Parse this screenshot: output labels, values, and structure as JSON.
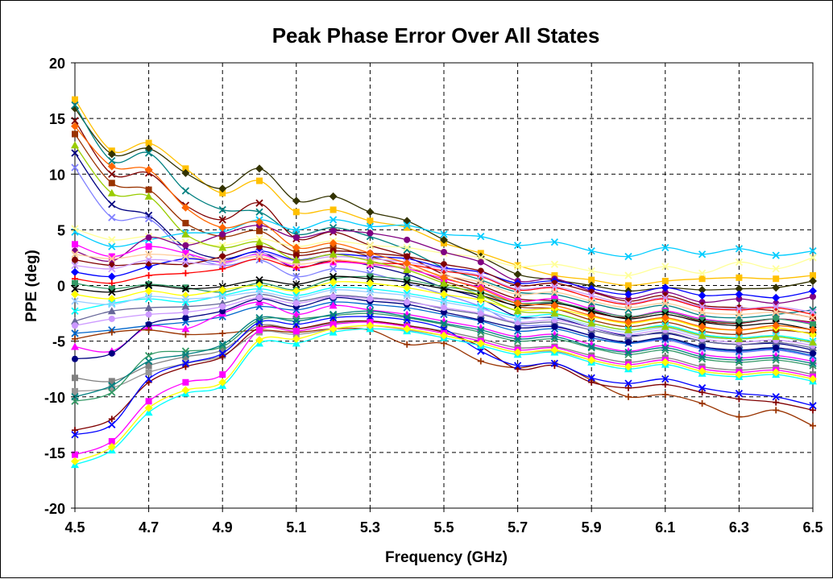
{
  "chart_data": {
    "type": "line",
    "title": "Peak Phase Error Over All States",
    "xlabel": "Frequency (GHz)",
    "ylabel": "PPE (deg)",
    "xlim": [
      4.5,
      6.5
    ],
    "ylim": [
      -20,
      20
    ],
    "x_ticks": [
      "4.5",
      "4.7",
      "4.9",
      "5.1",
      "5.3",
      "5.5",
      "5.7",
      "5.9",
      "6.1",
      "6.3",
      "6.5"
    ],
    "y_ticks": [
      "20",
      "15",
      "10",
      "5",
      "0",
      "-5",
      "-10",
      "-15",
      "-20"
    ],
    "grid": true,
    "legend": "none",
    "x": [
      4.5,
      4.6,
      4.7,
      4.8,
      4.9,
      5.0,
      5.1,
      5.2,
      5.3,
      5.4,
      5.5,
      5.6,
      5.7,
      5.8,
      5.9,
      6.0,
      6.1,
      6.2,
      6.3,
      6.4,
      6.5
    ],
    "series": [
      {
        "color": "#FFC000",
        "marker": "square",
        "values": [
          16.7,
          12.1,
          12.8,
          10.5,
          8.3,
          9.4,
          6.6,
          6.8,
          5.8,
          5.2,
          3.8,
          2.9,
          1.8,
          0.9,
          0.5,
          0.0,
          0.4,
          0.6,
          0.7,
          0.6,
          0.9
        ]
      },
      {
        "color": "#333300",
        "marker": "diamond",
        "values": [
          15.9,
          11.8,
          12.3,
          10.1,
          8.7,
          10.5,
          7.6,
          8.0,
          6.6,
          5.8,
          4.1,
          2.6,
          1.0,
          0.5,
          0.0,
          -0.5,
          -0.2,
          -0.4,
          -0.3,
          -0.2,
          0.4
        ]
      },
      {
        "color": "#008080",
        "marker": "x",
        "values": [
          16.2,
          11.2,
          11.9,
          8.5,
          6.8,
          6.6,
          4.6,
          5.2,
          4.4,
          3.2,
          1.6,
          0.5,
          -0.6,
          -0.8,
          -1.6,
          -2.2,
          -1.8,
          -2.7,
          -2.9,
          -2.6,
          -2.2
        ]
      },
      {
        "color": "#800000",
        "marker": "x",
        "values": [
          14.8,
          10.0,
          10.1,
          7.2,
          5.9,
          7.4,
          4.2,
          4.8,
          3.6,
          2.6,
          1.0,
          0.0,
          -1.2,
          -1.4,
          -2.4,
          -2.9,
          -2.4,
          -3.2,
          -3.4,
          -3.0,
          -3.3
        ]
      },
      {
        "color": "#993300",
        "marker": "square",
        "values": [
          13.6,
          9.2,
          8.6,
          5.6,
          4.4,
          4.9,
          3.0,
          3.4,
          2.6,
          1.7,
          0.4,
          -0.6,
          -1.9,
          -2.1,
          -3.1,
          -3.7,
          -3.3,
          -4.1,
          -4.4,
          -4.0,
          -4.3
        ]
      },
      {
        "color": "#000080",
        "marker": "x",
        "values": [
          11.9,
          7.3,
          6.3,
          3.4,
          2.4,
          3.0,
          1.6,
          2.3,
          1.8,
          1.0,
          -0.2,
          -1.2,
          -2.8,
          -2.9,
          -3.8,
          -4.5,
          -4.3,
          -5.0,
          -5.3,
          -5.2,
          -5.8
        ]
      },
      {
        "color": "#7F7FFF",
        "marker": "x",
        "values": [
          10.6,
          6.1,
          6.0,
          3.0,
          1.8,
          2.3,
          0.8,
          1.5,
          1.1,
          0.2,
          -0.8,
          -1.9,
          -3.5,
          -3.6,
          -4.5,
          -5.2,
          -4.9,
          -5.7,
          -6.0,
          -5.8,
          -6.4
        ]
      },
      {
        "color": "#00CCFF",
        "marker": "x",
        "values": [
          4.8,
          3.5,
          4.1,
          4.7,
          4.8,
          5.9,
          5.0,
          5.9,
          5.3,
          5.4,
          4.6,
          4.4,
          3.6,
          3.9,
          3.1,
          2.6,
          3.4,
          2.8,
          3.3,
          2.7,
          3.1
        ]
      },
      {
        "color": "#FFFF99",
        "marker": "x",
        "values": [
          5.1,
          4.1,
          4.4,
          3.9,
          3.6,
          4.2,
          3.5,
          4.0,
          3.6,
          3.4,
          2.9,
          2.5,
          1.7,
          1.9,
          1.3,
          0.9,
          1.7,
          1.1,
          2.1,
          1.5,
          2.5
        ]
      },
      {
        "color": "#800080",
        "marker": "circle",
        "values": [
          3.1,
          2.2,
          4.3,
          3.6,
          4.6,
          5.4,
          4.3,
          4.9,
          4.7,
          4.1,
          3.0,
          2.1,
          0.4,
          0.6,
          -0.5,
          -1.2,
          -0.6,
          -1.5,
          -1.2,
          -1.6,
          -1.0
        ]
      },
      {
        "color": "#FF00FF",
        "marker": "square",
        "values": [
          3.7,
          2.6,
          3.5,
          2.9,
          2.1,
          2.8,
          1.7,
          2.1,
          1.9,
          1.5,
          0.6,
          -0.2,
          -1.4,
          -1.2,
          -2.1,
          -2.8,
          -2.3,
          -3.0,
          -3.3,
          -3.0,
          -3.4
        ]
      },
      {
        "color": "#0000FF",
        "marker": "diamond",
        "values": [
          1.2,
          0.8,
          1.7,
          2.4,
          2.2,
          3.1,
          2.3,
          2.8,
          2.6,
          2.4,
          1.6,
          1.2,
          0.2,
          0.4,
          -0.3,
          -0.8,
          -0.2,
          -0.9,
          -0.8,
          -1.1,
          -0.5
        ]
      },
      {
        "color": "#800000",
        "marker": "circle",
        "values": [
          2.3,
          1.8,
          2.0,
          1.9,
          2.6,
          3.5,
          2.7,
          3.1,
          2.9,
          2.6,
          1.9,
          1.3,
          0.0,
          0.2,
          -0.6,
          -1.4,
          -0.9,
          -1.8,
          -2.0,
          -2.3,
          -2.9
        ]
      },
      {
        "color": "#FF0000",
        "marker": "plus",
        "values": [
          0.6,
          0.2,
          0.9,
          1.1,
          1.5,
          2.4,
          1.6,
          2.2,
          2.0,
          1.9,
          1.3,
          0.8,
          -0.4,
          -0.2,
          -1.1,
          -1.7,
          -1.2,
          -2.0,
          -2.2,
          -2.0,
          -2.6
        ]
      },
      {
        "color": "#CC99FF",
        "marker": "x",
        "values": [
          1.8,
          1.5,
          2.3,
          2.1,
          1.9,
          2.9,
          2.2,
          2.6,
          2.4,
          2.1,
          1.5,
          0.9,
          -0.3,
          -0.1,
          -0.9,
          -1.6,
          -1.1,
          -1.9,
          -2.1,
          -1.9,
          -2.4
        ]
      },
      {
        "color": "#339966",
        "marker": "square",
        "values": [
          0.2,
          -0.3,
          0.1,
          -0.2,
          -0.6,
          0.2,
          -0.4,
          0.6,
          0.8,
          0.5,
          -0.1,
          -0.6,
          -1.6,
          -1.5,
          -2.2,
          -2.8,
          -2.4,
          -3.1,
          -3.3,
          -3.0,
          -3.5
        ]
      },
      {
        "color": "#000000",
        "marker": "x",
        "values": [
          -0.3,
          -0.6,
          0.0,
          -0.3,
          -0.1,
          0.5,
          0.1,
          0.8,
          0.6,
          0.3,
          -0.3,
          -0.9,
          -1.8,
          -1.6,
          -2.3,
          -3.0,
          -2.6,
          -3.3,
          -3.6,
          -3.4,
          -4.0
        ]
      },
      {
        "color": "#FFFF00",
        "marker": "diamond",
        "values": [
          -0.8,
          -1.2,
          -0.5,
          -0.9,
          -0.4,
          0.0,
          -0.5,
          0.3,
          0.2,
          -0.2,
          -0.8,
          -1.3,
          -2.2,
          -2.1,
          -2.8,
          -3.4,
          -3.0,
          -3.8,
          -4.0,
          -3.8,
          -4.4
        ]
      },
      {
        "color": "#00FFFF",
        "marker": "x",
        "values": [
          -2.3,
          -1.6,
          -1.2,
          -1.5,
          -0.9,
          -0.3,
          -0.9,
          -0.2,
          -0.3,
          -0.7,
          -1.3,
          -1.9,
          -2.8,
          -2.6,
          -3.4,
          -4.0,
          -3.6,
          -4.4,
          -4.7,
          -4.5,
          -5.0
        ]
      },
      {
        "color": "#666699",
        "marker": "triangle",
        "values": [
          -3.2,
          -2.3,
          -2.0,
          -1.9,
          -1.6,
          -0.8,
          -1.4,
          -0.9,
          -1.1,
          -1.4,
          -2.1,
          -2.6,
          -3.4,
          -3.3,
          -4.0,
          -4.6,
          -4.2,
          -5.0,
          -5.3,
          -5.1,
          -5.6
        ]
      },
      {
        "color": "#0066CC",
        "marker": "x",
        "values": [
          -4.3,
          -4.0,
          -3.6,
          -3.3,
          -2.8,
          -1.9,
          -2.2,
          -1.5,
          -1.7,
          -2.0,
          -2.6,
          -3.2,
          -4.1,
          -3.9,
          -4.7,
          -5.2,
          -4.8,
          -5.6,
          -5.9,
          -5.7,
          -6.3
        ]
      },
      {
        "color": "#FF00FF",
        "marker": "triangle",
        "values": [
          -5.5,
          -5.9,
          -3.7,
          -3.9,
          -2.5,
          -1.5,
          -2.6,
          -1.8,
          -2.2,
          -2.6,
          -3.2,
          -3.8,
          -4.6,
          -4.4,
          -5.3,
          -5.9,
          -5.4,
          -6.2,
          -6.5,
          -6.3,
          -6.8
        ]
      },
      {
        "color": "#000080",
        "marker": "circle",
        "values": [
          -6.6,
          -6.1,
          -3.5,
          -2.9,
          -2.3,
          -1.2,
          -1.9,
          -1.1,
          -1.4,
          -1.7,
          -2.4,
          -3.1,
          -3.8,
          -3.7,
          -4.5,
          -5.1,
          -4.7,
          -5.5,
          -5.8,
          -5.6,
          -6.1
        ]
      },
      {
        "color": "#993300",
        "marker": "plus",
        "values": [
          -4.8,
          -4.2,
          -4.0,
          -4.4,
          -4.3,
          -4.0,
          -4.2,
          -3.9,
          -4.0,
          -5.3,
          -5.2,
          -6.8,
          -7.4,
          -7.0,
          -8.5,
          -10.0,
          -9.8,
          -10.6,
          -11.8,
          -11.2,
          -12.6
        ]
      },
      {
        "color": "#808080",
        "marker": "square",
        "values": [
          -8.3,
          -8.6,
          -7.2,
          -6.4,
          -5.8,
          -3.6,
          -3.9,
          -3.4,
          -3.2,
          -3.6,
          -4.1,
          -4.8,
          -5.6,
          -5.5,
          -6.3,
          -6.9,
          -6.5,
          -7.3,
          -7.6,
          -7.4,
          -8.0
        ]
      },
      {
        "color": "#969696",
        "marker": "square",
        "values": [
          -9.5,
          -9.2,
          -7.8,
          -7.0,
          -6.3,
          -4.2,
          -4.4,
          -3.9,
          -3.6,
          -4.0,
          -4.5,
          -5.2,
          -6.0,
          -5.9,
          -6.7,
          -7.3,
          -6.9,
          -7.7,
          -8.0,
          -7.8,
          -8.4
        ]
      },
      {
        "color": "#339966",
        "marker": "x",
        "values": [
          -10.4,
          -9.6,
          -6.3,
          -5.9,
          -5.5,
          -3.1,
          -3.0,
          -2.7,
          -2.5,
          -2.9,
          -3.5,
          -4.2,
          -5.0,
          -4.8,
          -5.6,
          -6.2,
          -5.8,
          -6.6,
          -6.9,
          -6.7,
          -7.2
        ]
      },
      {
        "color": "#800000",
        "marker": "plus",
        "values": [
          -13.0,
          -12.0,
          -8.7,
          -7.3,
          -6.4,
          -3.8,
          -3.9,
          -3.3,
          -3.2,
          -3.6,
          -4.2,
          -5.5,
          -7.5,
          -7.2,
          -8.7,
          -9.2,
          -8.9,
          -9.6,
          -10.2,
          -10.5,
          -11.2
        ]
      },
      {
        "color": "#0000FF",
        "marker": "x",
        "values": [
          -13.4,
          -12.5,
          -8.4,
          -7.0,
          -6.1,
          -3.3,
          -3.5,
          -2.9,
          -2.8,
          -3.1,
          -3.9,
          -5.9,
          -7.2,
          -7.0,
          -8.3,
          -8.8,
          -8.4,
          -9.2,
          -9.7,
          -10.0,
          -10.8
        ]
      },
      {
        "color": "#FF00FF",
        "marker": "square",
        "values": [
          -15.2,
          -14.0,
          -10.4,
          -8.7,
          -8.0,
          -4.0,
          -4.1,
          -3.5,
          -3.3,
          -3.7,
          -4.3,
          -5.0,
          -5.8,
          -5.6,
          -6.5,
          -7.1,
          -6.7,
          -7.5,
          -7.8,
          -7.6,
          -8.2
        ]
      },
      {
        "color": "#00FFFF",
        "marker": "triangle",
        "values": [
          -16.1,
          -14.8,
          -11.4,
          -9.7,
          -9.0,
          -5.2,
          -5.2,
          -4.2,
          -3.9,
          -4.1,
          -4.7,
          -5.4,
          -6.2,
          -6.0,
          -6.9,
          -7.5,
          -7.1,
          -7.9,
          -8.2,
          -8.0,
          -8.6
        ]
      },
      {
        "color": "#FFFF00",
        "marker": "diamond",
        "values": [
          -15.8,
          -14.5,
          -11.0,
          -9.4,
          -8.7,
          -4.9,
          -4.8,
          -3.9,
          -3.6,
          -3.9,
          -4.5,
          -5.2,
          -6.0,
          -5.8,
          -6.7,
          -7.3,
          -6.9,
          -7.7,
          -8.0,
          -7.8,
          -8.4
        ]
      },
      {
        "color": "#008080",
        "marker": "x",
        "values": [
          -10.0,
          -9.0,
          -6.8,
          -6.2,
          -5.3,
          -2.9,
          -3.2,
          -2.6,
          -2.3,
          -2.8,
          -3.4,
          -4.0,
          -4.8,
          -4.6,
          -5.5,
          -6.0,
          -5.6,
          -6.4,
          -6.7,
          -6.5,
          -7.0
        ]
      },
      {
        "color": "#CC99FF",
        "marker": "circle",
        "values": [
          -3.6,
          -3.0,
          -2.6,
          -2.4,
          -1.9,
          -1.1,
          -1.6,
          -1.0,
          -1.2,
          -1.5,
          -2.0,
          -2.5,
          -3.3,
          -3.1,
          -3.8,
          -4.4,
          -4.0,
          -4.8,
          -5.1,
          -4.9,
          -5.4
        ]
      },
      {
        "color": "#FFCC99",
        "marker": "x",
        "values": [
          2.8,
          2.4,
          2.8,
          2.6,
          2.2,
          2.6,
          1.9,
          2.3,
          2.0,
          1.6,
          0.9,
          0.3,
          -0.8,
          -0.6,
          -1.4,
          -2.0,
          -1.6,
          -2.4,
          -2.6,
          -2.4,
          -2.9
        ]
      },
      {
        "color": "#99CCFF",
        "marker": "x",
        "values": [
          -1.4,
          -1.7,
          -1.0,
          -1.2,
          -1.0,
          -0.6,
          -1.1,
          -0.4,
          -0.6,
          -0.9,
          -1.5,
          -2.1,
          -3.0,
          -2.8,
          -3.6,
          -4.2,
          -3.8,
          -4.6,
          -4.8,
          -4.6,
          -5.2
        ]
      },
      {
        "color": "#FF6600",
        "marker": "diamond",
        "values": [
          14.3,
          10.7,
          10.4,
          7.0,
          5.2,
          5.7,
          3.4,
          3.8,
          2.9,
          2.0,
          0.7,
          -0.3,
          -1.6,
          -1.8,
          -2.7,
          -3.3,
          -2.9,
          -3.7,
          -4.0,
          -3.6,
          -4.0
        ]
      },
      {
        "color": "#99CC00",
        "marker": "triangle",
        "values": [
          12.6,
          8.3,
          8.0,
          4.6,
          3.4,
          3.9,
          2.3,
          2.8,
          2.2,
          1.4,
          0.2,
          -0.9,
          -2.3,
          -2.5,
          -3.4,
          -4.0,
          -3.7,
          -4.5,
          -4.8,
          -4.6,
          -5.1
        ]
      }
    ]
  }
}
